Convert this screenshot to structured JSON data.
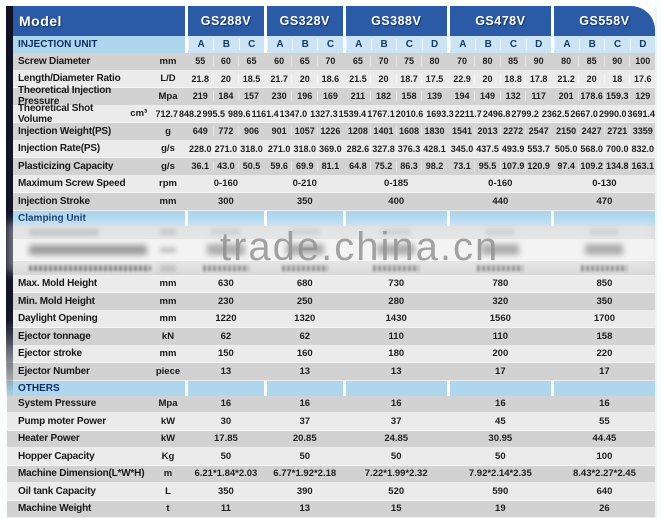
{
  "watermark": "trade.china.cn",
  "table": {
    "model_header": "Model",
    "models": [
      {
        "name": "GS288V",
        "cols": [
          "A",
          "B",
          "C"
        ]
      },
      {
        "name": "GS328V",
        "cols": [
          "A",
          "B",
          "C"
        ]
      },
      {
        "name": "GS388V",
        "cols": [
          "A",
          "B",
          "C",
          "D"
        ]
      },
      {
        "name": "GS478V",
        "cols": [
          "A",
          "B",
          "C",
          "D"
        ]
      },
      {
        "name": "GS558V",
        "cols": [
          "A",
          "B",
          "C",
          "D"
        ]
      }
    ],
    "sections": [
      {
        "title": "INJECTION UNIT",
        "show_letters": true,
        "rows": [
          {
            "label": "Screw Diameter",
            "unit": "mm",
            "shade": "dark",
            "values": [
              [
                "55",
                "60",
                "65"
              ],
              [
                "60",
                "65",
                "70"
              ],
              [
                "65",
                "70",
                "75",
                "80"
              ],
              [
                "70",
                "80",
                "85",
                "90"
              ],
              [
                "80",
                "85",
                "90",
                "100"
              ]
            ]
          },
          {
            "label": "Length/Diameter Ratio",
            "unit": "L/D",
            "shade": "light",
            "values": [
              [
                "21.8",
                "20",
                "18.5"
              ],
              [
                "21.7",
                "20",
                "18.6"
              ],
              [
                "21.5",
                "20",
                "18.7",
                "17.5"
              ],
              [
                "22.9",
                "20",
                "18.8",
                "17.8"
              ],
              [
                "21.2",
                "20",
                "18",
                "17.6"
              ]
            ]
          },
          {
            "label": "Theoretical Injection Pressure",
            "unit": "Mpa",
            "shade": "dark",
            "values": [
              [
                "219",
                "184",
                "157"
              ],
              [
                "230",
                "196",
                "169"
              ],
              [
                "211",
                "182",
                "158",
                "139"
              ],
              [
                "194",
                "149",
                "132",
                "117"
              ],
              [
                "201",
                "178.6",
                "159.3",
                "129"
              ]
            ]
          },
          {
            "label": "Theoretical Shot Volume",
            "unit": "cm³",
            "shade": "light",
            "values": [
              [
                "712.7",
                "848.2",
                "995.5"
              ],
              [
                "989.6",
                "1161.4",
                "1347.0"
              ],
              [
                "1327.3",
                "1539.4",
                "1767.1",
                "2010.6"
              ],
              [
                "1693.3",
                "2211.7",
                "2496.8",
                "2799.2"
              ],
              [
                "2362.5",
                "2667.0",
                "2990.0",
                "3691.4"
              ]
            ]
          },
          {
            "label": "Injection Weight(PS)",
            "unit": "g",
            "shade": "dark",
            "values": [
              [
                "649",
                "772",
                "906"
              ],
              [
                "901",
                "1057",
                "1226"
              ],
              [
                "1208",
                "1401",
                "1608",
                "1830"
              ],
              [
                "1541",
                "2013",
                "2272",
                "2547"
              ],
              [
                "2150",
                "2427",
                "2721",
                "3359"
              ]
            ]
          },
          {
            "label": "Injection Rate(PS)",
            "unit": "g/s",
            "shade": "light",
            "values": [
              [
                "228.0",
                "271.0",
                "318.0"
              ],
              [
                "271.0",
                "318.0",
                "369.0"
              ],
              [
                "282.6",
                "327.8",
                "376.3",
                "428.1"
              ],
              [
                "345.0",
                "437.5",
                "493.9",
                "553.7"
              ],
              [
                "505.0",
                "568.0",
                "700.0",
                "832.0"
              ]
            ]
          },
          {
            "label": "Plasticizing Capacity",
            "unit": "g/s",
            "shade": "dark",
            "values": [
              [
                "36.1",
                "43.0",
                "50.5"
              ],
              [
                "59.6",
                "69.9",
                "81.1"
              ],
              [
                "64.8",
                "75.2",
                "86.3",
                "98.2"
              ],
              [
                "73.1",
                "95.5",
                "107.9",
                "120.9"
              ],
              [
                "97.4",
                "109.2",
                "134.8",
                "163.1"
              ]
            ]
          },
          {
            "label": "Maximum Screw Speed",
            "unit": "rpm",
            "shade": "light",
            "merged": [
              "0-160",
              "0-210",
              "0-185",
              "0-160",
              "0-130"
            ]
          },
          {
            "label": "Injection Stroke",
            "unit": "mm",
            "shade": "dark",
            "merged": [
              "300",
              "350",
              "400",
              "440",
              "470"
            ]
          }
        ]
      },
      {
        "title": "Clamping Unit",
        "show_letters": false,
        "rows": [
          {
            "redacted": "a",
            "shade": "dark"
          },
          {
            "redacted": "b",
            "shade": "light"
          },
          {
            "redacted": "c",
            "shade": "dark"
          },
          {
            "label": "Max. Mold Height",
            "unit": "mm",
            "shade": "light",
            "merged": [
              "630",
              "680",
              "730",
              "780",
              "850"
            ]
          },
          {
            "label": "Min. Mold Height",
            "unit": "mm",
            "shade": "dark",
            "merged": [
              "230",
              "250",
              "280",
              "320",
              "350"
            ]
          },
          {
            "label": "Daylight Opening",
            "unit": "mm",
            "shade": "light",
            "merged": [
              "1220",
              "1320",
              "1430",
              "1560",
              "1700"
            ]
          },
          {
            "label": "Ejector tonnage",
            "unit": "kN",
            "shade": "dark",
            "merged": [
              "62",
              "62",
              "110",
              "110",
              "158"
            ]
          },
          {
            "label": "Ejector stroke",
            "unit": "mm",
            "shade": "light",
            "merged": [
              "150",
              "160",
              "180",
              "200",
              "220"
            ]
          },
          {
            "label": "Ejector Number",
            "unit": "piece",
            "shade": "dark",
            "merged": [
              "13",
              "13",
              "13",
              "17",
              "17"
            ]
          }
        ]
      },
      {
        "title": "OTHERS",
        "show_letters": false,
        "rows": [
          {
            "label": "System Pressure",
            "unit": "Mpa",
            "shade": "dark",
            "merged": [
              "16",
              "16",
              "16",
              "16",
              "16"
            ]
          },
          {
            "label": "Pump moter Power",
            "unit": "kW",
            "shade": "light",
            "merged": [
              "30",
              "37",
              "37",
              "45",
              "55"
            ]
          },
          {
            "label": "Heater Power",
            "unit": "kW",
            "shade": "dark",
            "merged": [
              "17.85",
              "20.85",
              "24.85",
              "30.95",
              "44.45"
            ]
          },
          {
            "label": "Hopper Capacity",
            "unit": "Kg",
            "shade": "light",
            "merged": [
              "50",
              "50",
              "50",
              "50",
              "100"
            ]
          },
          {
            "label": "Machine Dimension(L*W*H)",
            "unit": "m",
            "shade": "dark",
            "merged": [
              "6.21*1.84*2.03",
              "6.77*1.92*2.18",
              "7.22*1.99*2.32",
              "7.92*2.14*2.35",
              "8.43*2.27*2.45"
            ]
          },
          {
            "label": "Oil tank Capacity",
            "unit": "L",
            "shade": "light",
            "merged": [
              "350",
              "390",
              "520",
              "590",
              "640"
            ]
          },
          {
            "label": "Machine Weight",
            "unit": "t",
            "shade": "dark",
            "merged": [
              "11",
              "13",
              "15",
              "19",
              "26"
            ]
          }
        ]
      }
    ]
  }
}
